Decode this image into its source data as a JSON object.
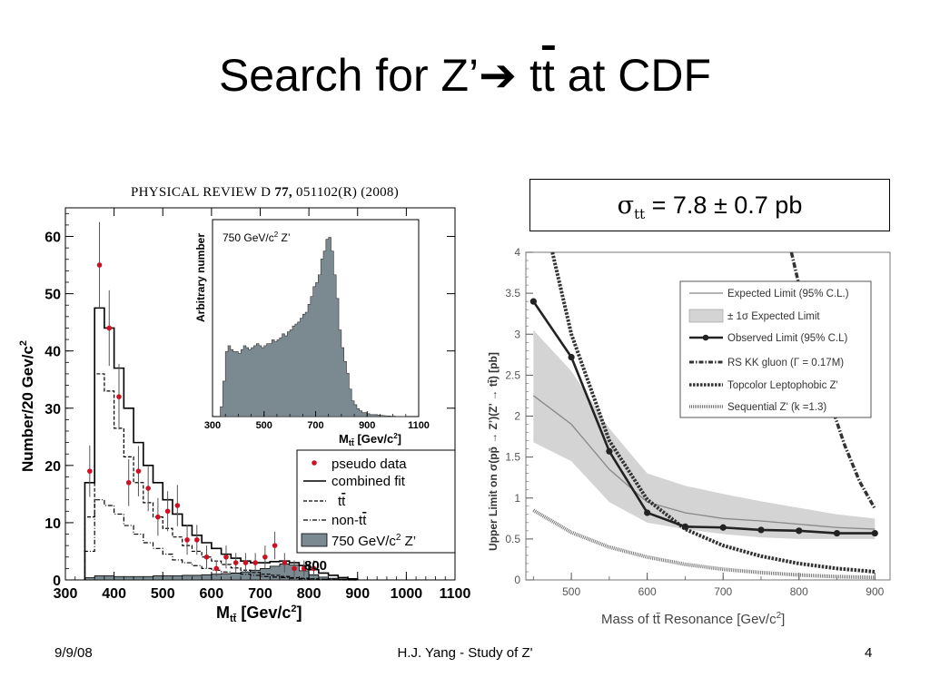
{
  "slide": {
    "title_prefix": "Search for Z’",
    "title_arrow": "➔",
    "title_t1": "t",
    "title_t2": "t",
    "title_suffix": " at CDF",
    "footer_left": "9/9/08",
    "footer_center": "H.J. Yang - Study of Z'",
    "footer_right": "4"
  },
  "cross_section_box": {
    "symbol": "σ",
    "subscript": "tt",
    "text": " = 7.8 ± 0.7 pb"
  },
  "chart_data": [
    {
      "type": "bar",
      "journal_header_prefix": "PHYSICAL REVIEW D ",
      "journal_header_volume": "77,",
      "journal_header_suffix": " 051102(R) (2008)",
      "xlabel": "M",
      "xlabel_sub": "tt̄",
      "xlabel_unit": " [Gev/c",
      "xlabel_unit_end": "]",
      "ylabel": "Number/20 Gev/c",
      "xlim": [
        300,
        1100
      ],
      "ylim": [
        0,
        65
      ],
      "x_ticks": [
        300,
        400,
        500,
        600,
        700,
        800,
        900,
        1000,
        1100
      ],
      "y_ticks": [
        0,
        10,
        20,
        30,
        40,
        50,
        60
      ],
      "bin_edges": [
        340,
        360,
        380,
        400,
        420,
        440,
        460,
        480,
        500,
        520,
        540,
        560,
        580,
        600,
        620,
        640,
        660,
        680,
        700,
        720,
        740,
        760,
        780,
        800,
        820,
        840,
        860,
        880,
        900
      ],
      "combined_fit": [
        17,
        47.5,
        44,
        37,
        30,
        24,
        20,
        17,
        14,
        11.5,
        9.5,
        7.8,
        6.5,
        5.5,
        4.5,
        3.8,
        3.3,
        3.0,
        3.0,
        3.2,
        3.3,
        3.0,
        2.5,
        1.8,
        1.2,
        0.8,
        0.4,
        0.2
      ],
      "ttbar": [
        11,
        36,
        33,
        26.5,
        21.5,
        17,
        13.5,
        11,
        9,
        7.5,
        6,
        5,
        4,
        3.3,
        2.7,
        2.1,
        1.7,
        1.3,
        1.0,
        0.8,
        0.6,
        0.4,
        0.3,
        0.2,
        0.1,
        0.1,
        0.05,
        0
      ],
      "non_ttbar": [
        5,
        14,
        13,
        11.5,
        9.5,
        8,
        6.5,
        5.5,
        4.5,
        3.5,
        3,
        2.5,
        2.0,
        1.7,
        1.4,
        1.2,
        1.0,
        0.8,
        0.6,
        0.5,
        0.4,
        0.3,
        0.2,
        0.15,
        0.1,
        0.05,
        0,
        0
      ],
      "zprime_750": [
        0.4,
        0.7,
        0.7,
        0.6,
        0.6,
        0.6,
        0.6,
        0.7,
        0.7,
        0.7,
        0.8,
        0.8,
        0.9,
        1.0,
        1.1,
        1.2,
        1.4,
        1.7,
        2.0,
        2.4,
        2.8,
        2.6,
        1.6,
        0.9,
        0.5,
        0.3,
        0.15,
        0.05
      ],
      "pseudo_data": {
        "x": [
          350,
          370,
          390,
          410,
          430,
          450,
          470,
          490,
          510,
          530,
          550,
          570,
          590,
          610,
          630,
          650,
          670,
          690,
          710,
          730,
          750,
          770,
          790,
          810
        ],
        "y": [
          19,
          55,
          44,
          32,
          17,
          19,
          16,
          11,
          12,
          13,
          7,
          7,
          4,
          2,
          4,
          3,
          3,
          3,
          4,
          6,
          3,
          2,
          2,
          2
        ],
        "err": [
          4.5,
          7.5,
          6.6,
          5.7,
          4.1,
          4.4,
          4,
          3.3,
          3.5,
          3.6,
          2.6,
          2.6,
          2,
          1.4,
          2,
          1.7,
          1.7,
          1.7,
          2,
          2.4,
          1.7,
          1.4,
          1.4,
          1.4
        ]
      },
      "annotation": "800",
      "legend_position": "bottom-right",
      "legend": [
        {
          "name": "pseudo data",
          "color": "#cc1122"
        },
        {
          "name": "combined fit",
          "color": "#000000"
        },
        {
          "name_main": "t",
          "name_bar": "t",
          "color": "#000000"
        },
        {
          "name_main": "non-t",
          "name_bar": "t",
          "color": "#000000"
        },
        {
          "name": "750 GeV/c",
          "name_end": " Z’",
          "color": "#7b8990"
        }
      ],
      "inset": {
        "type": "bar",
        "label": "750 GeV/c",
        "label_end": " Z’",
        "ylabel": "Arbitrary number",
        "xlabel": "M",
        "xlabel_sub": "tt̄",
        "xlabel_unit": " [Gev/c",
        "xlabel_unit_end": "]",
        "xlim": [
          300,
          1100
        ],
        "x_ticks": [
          300,
          500,
          700,
          900,
          1100
        ],
        "ylim": [
          0,
          1
        ],
        "fill_color": "#7b8990",
        "bin_edges": [
          330,
          340,
          350,
          360,
          370,
          380,
          390,
          400,
          410,
          420,
          430,
          440,
          450,
          460,
          470,
          480,
          490,
          500,
          510,
          520,
          530,
          540,
          550,
          560,
          570,
          580,
          590,
          600,
          610,
          620,
          630,
          640,
          650,
          660,
          670,
          680,
          690,
          700,
          710,
          720,
          730,
          740,
          750,
          760,
          770,
          780,
          790,
          800,
          810,
          820,
          830,
          840,
          850,
          860,
          870,
          880,
          890,
          900,
          910,
          920,
          930,
          940,
          950,
          960,
          970,
          980,
          990,
          1000,
          1010,
          1020,
          1030,
          1040,
          1050
        ],
        "values": [
          0.05,
          0.18,
          0.33,
          0.36,
          0.34,
          0.33,
          0.33,
          0.32,
          0.34,
          0.36,
          0.35,
          0.34,
          0.35,
          0.36,
          0.37,
          0.36,
          0.35,
          0.36,
          0.37,
          0.37,
          0.39,
          0.38,
          0.39,
          0.4,
          0.42,
          0.41,
          0.43,
          0.44,
          0.46,
          0.47,
          0.48,
          0.5,
          0.52,
          0.53,
          0.57,
          0.61,
          0.66,
          0.68,
          0.72,
          0.8,
          0.84,
          0.9,
          0.91,
          0.84,
          0.72,
          0.6,
          0.44,
          0.35,
          0.28,
          0.22,
          0.14,
          0.08,
          0.06,
          0.04,
          0.03,
          0.02,
          0.02,
          0.015,
          0.01,
          0.01,
          0.01,
          0.008,
          0.006,
          0.005,
          0.004,
          0.003,
          0.002,
          0.002,
          0.001,
          0.001,
          0.001,
          0.001
        ]
      }
    },
    {
      "type": "line",
      "xlabel": "Mass of tt̄ Resonance [Gev/c",
      "xlabel_end": "]",
      "ylabel": "Upper Limit on σ(pp̄ → Z’)(Z’ → tt̄) [pb]",
      "xlim": [
        440,
        920
      ],
      "ylim": [
        0,
        4
      ],
      "x_ticks": [
        500,
        600,
        700,
        800,
        900
      ],
      "y_ticks": [
        0,
        0.5,
        1,
        1.5,
        2,
        2.5,
        3,
        3.5,
        4
      ],
      "y_tick_labels": [
        "0",
        "0.5",
        "1",
        "1.5",
        "2",
        "2.5",
        "3",
        "3.5",
        "4"
      ],
      "legend_position": "top-right",
      "legend": [
        "Expected Limit (95% C.L.)",
        "± 1σ Expected Limit",
        "Observed Limit (95% C.L)",
        "RS KK gluon (Γ = 0.17M)",
        "Topcolor Leptophobic Z'",
        "Sequential Z' (k =1.3)"
      ],
      "series": [
        {
          "name": "Observed Limit (95% C.L)",
          "x": [
            450,
            500,
            550,
            600,
            650,
            700,
            750,
            800,
            850,
            900
          ],
          "y": [
            3.4,
            2.72,
            1.57,
            0.82,
            0.65,
            0.64,
            0.61,
            0.6,
            0.57,
            0.57
          ]
        },
        {
          "name": "Expected Limit (95% C.L.)",
          "x": [
            450,
            500,
            550,
            600,
            650,
            700,
            750,
            800,
            850,
            900
          ],
          "y": [
            2.25,
            1.9,
            1.35,
            0.95,
            0.82,
            0.75,
            0.72,
            0.68,
            0.64,
            0.62
          ]
        },
        {
          "name": "± 1σ Expected Limit",
          "x": [
            450,
            500,
            550,
            600,
            650,
            700,
            750,
            800,
            850,
            900
          ],
          "upper": [
            3.05,
            2.55,
            1.85,
            1.3,
            1.15,
            1.05,
            0.96,
            0.88,
            0.8,
            0.75
          ],
          "lower": [
            1.68,
            1.45,
            0.95,
            0.7,
            0.62,
            0.56,
            0.52,
            0.5,
            0.5,
            0.5
          ]
        },
        {
          "name": "RS KK gluon (Γ = 0.17M)",
          "x": [
            790,
            800,
            820,
            840,
            860,
            880,
            900
          ],
          "y": [
            4.0,
            3.6,
            2.9,
            2.2,
            1.65,
            1.2,
            0.87
          ]
        },
        {
          "name": "Topcolor Leptophobic Z'",
          "x": [
            475,
            500,
            550,
            600,
            650,
            700,
            750,
            800,
            850,
            900
          ],
          "y": [
            4.0,
            3.0,
            1.7,
            0.98,
            0.62,
            0.42,
            0.29,
            0.2,
            0.14,
            0.1
          ]
        },
        {
          "name": "Sequential Z' (k =1.3)",
          "x": [
            450,
            500,
            550,
            600,
            650,
            700,
            750,
            800,
            850,
            900
          ],
          "y": [
            0.85,
            0.58,
            0.4,
            0.28,
            0.19,
            0.13,
            0.09,
            0.06,
            0.04,
            0.03
          ]
        }
      ],
      "colors": {
        "observed": "#222222",
        "expected": "#888888",
        "band": "#d4d4d4"
      }
    }
  ]
}
